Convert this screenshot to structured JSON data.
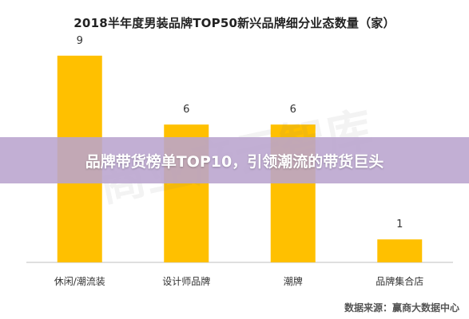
{
  "chart_data": {
    "type": "bar",
    "title": "2018半年度男装品牌TOP50新兴品牌细分业态数量（家）",
    "categories": [
      "休闲/潮流装",
      "设计师品牌",
      "潮牌",
      "品牌集合店"
    ],
    "values": [
      9,
      6,
      6,
      1
    ],
    "ylim": [
      0,
      10
    ],
    "grid": false,
    "legend": "none",
    "bar_color": "#FFC000"
  },
  "overlay": {
    "banner_text": "品牌带货榜单TOP10，引领潮流的带货巨头",
    "banner_color": "#BAA4CE"
  },
  "watermark": {
    "text": "商业产云智库"
  },
  "footer": {
    "source": "数据来源：赢商大数据中心"
  }
}
